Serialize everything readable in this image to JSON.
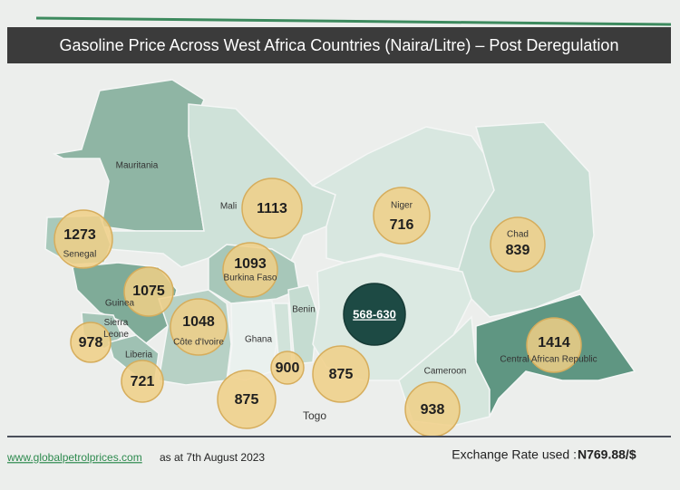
{
  "title": "Gasoline Price Across West Africa Countries (Naira/Litre) – Post Deregulation",
  "countries": [
    {
      "name": "Mauritania"
    },
    {
      "name": "Senegal",
      "price": 1273
    },
    {
      "name": "Mali",
      "price": 1113
    },
    {
      "name": "Niger",
      "price": 716
    },
    {
      "name": "Chad",
      "price": 839
    },
    {
      "name": "Guinea",
      "price": 1075
    },
    {
      "name": "Burkina Faso",
      "price": 1093
    },
    {
      "name": "Sierra Leone",
      "price": 978
    },
    {
      "name": "Liberia",
      "price": 721
    },
    {
      "name": "Côte d'Ivoire",
      "price": 1048
    },
    {
      "name": "Ghana",
      "price": 875
    },
    {
      "name": "Togo",
      "price": 900
    },
    {
      "name": "Benin",
      "price": 875
    },
    {
      "price": "568-630"
    },
    {
      "name": "Cameroon",
      "price": 938
    },
    {
      "name": "Central African Republic",
      "price": 1414
    }
  ],
  "footer": {
    "source": "www.globalpetrolprices.com",
    "date": "as at  7th August 2023",
    "exchange_label": "Exchange Rate used :",
    "exchange_value": "N769.88/$"
  }
}
